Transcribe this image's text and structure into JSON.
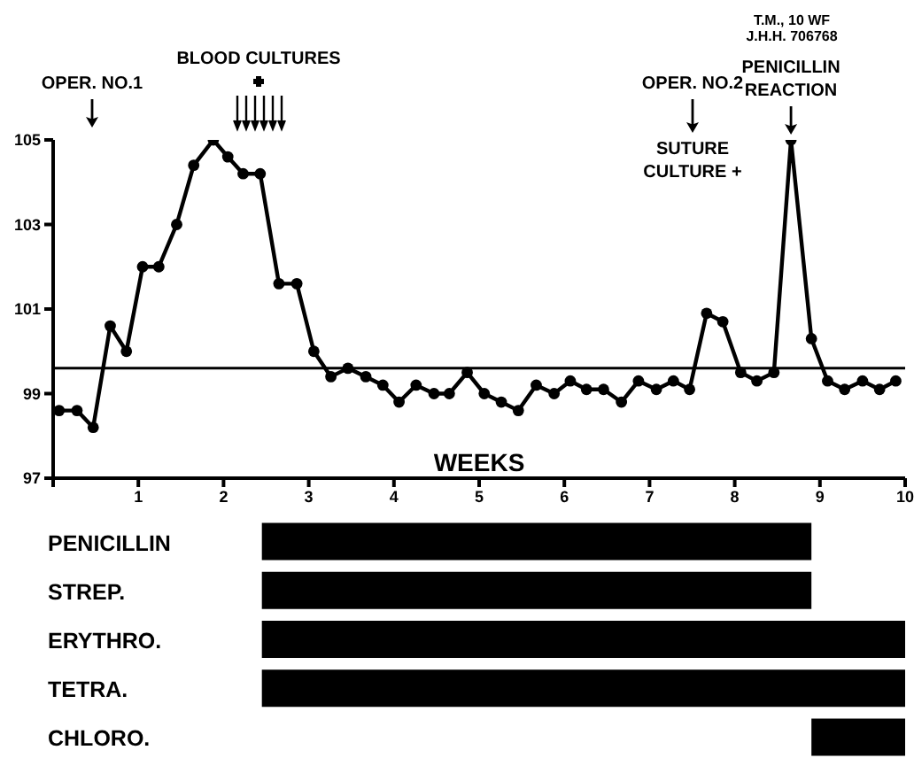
{
  "chart_data": [
    {
      "type": "line",
      "xlabel": "WEEKS",
      "color": "#000000",
      "marker": "circle",
      "line_style": "solid",
      "grid": false,
      "legend": false,
      "x": [
        0.07,
        0.28,
        0.47,
        0.67,
        0.86,
        1.05,
        1.24,
        1.45,
        1.65,
        1.88,
        2.05,
        2.23,
        2.43,
        2.65,
        2.86,
        3.06,
        3.26,
        3.46,
        3.67,
        3.87,
        4.06,
        4.26,
        4.47,
        4.65,
        4.86,
        5.06,
        5.26,
        5.46,
        5.67,
        5.88,
        6.07,
        6.26,
        6.46,
        6.67,
        6.87,
        7.08,
        7.28,
        7.47,
        7.67,
        7.86,
        8.07,
        8.26,
        8.46,
        8.66,
        8.9,
        9.09,
        9.29,
        9.5,
        9.7,
        9.89
      ],
      "values": [
        98.6,
        98.6,
        98.2,
        100.6,
        100.0,
        102.0,
        102.0,
        103.0,
        104.4,
        105.0,
        104.6,
        104.2,
        104.2,
        101.6,
        101.6,
        100.0,
        99.4,
        99.6,
        99.4,
        99.2,
        98.8,
        99.2,
        99.0,
        99.0,
        99.5,
        99.0,
        98.8,
        98.6,
        99.2,
        99.0,
        99.3,
        99.1,
        99.1,
        98.8,
        99.3,
        99.1,
        99.3,
        99.1,
        100.9,
        100.7,
        99.5,
        99.3,
        99.5,
        105.0,
        100.3,
        99.3,
        99.1,
        99.3,
        99.1,
        99.3
      ],
      "xlim": [
        0,
        10
      ],
      "xticks": [
        {
          "value": 0,
          "label": null
        },
        1,
        2,
        3,
        4,
        5,
        6,
        7,
        8,
        9,
        10
      ],
      "ylim": [
        97,
        105
      ],
      "yticks": [
        97,
        99,
        101,
        103,
        105
      ],
      "ref_lines": [
        {
          "axis": "y",
          "value": 99.6,
          "color": "#000000"
        }
      ],
      "annotations": [
        "OPER. NO.1",
        "BLOOD CULTURES",
        "OPER. NO.2",
        "SUTURE CULTURE +",
        {
          "text": "PENICILLIN REACTION",
          "x": 8.66,
          "y": 105.0
        },
        "T.M., 10 WF",
        "J.H.H. 706768"
      ]
    },
    {
      "type": "bar",
      "orientation": "horizontal",
      "color": "#000000",
      "tick_labels": "y",
      "categories": [
        "PENICILLIN",
        "STREP.",
        "ERYTHRO.",
        "TETRA.",
        "CHLORO."
      ],
      "base": [
        2.45,
        2.45,
        2.45,
        2.45,
        8.9
      ],
      "values": [
        6.45,
        6.45,
        7.55,
        7.55,
        1.1
      ],
      "xlim": [
        0,
        10
      ]
    }
  ]
}
